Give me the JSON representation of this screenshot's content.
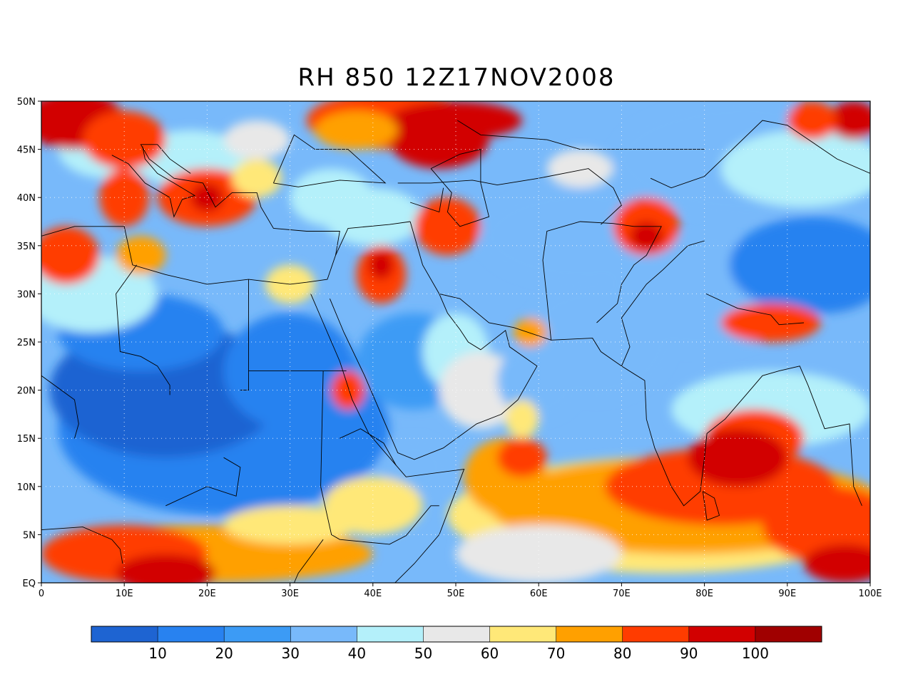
{
  "title": "RH 850 12Z17NOV2008",
  "map": {
    "lon_range": [
      0,
      100
    ],
    "lat_range": [
      0,
      50
    ],
    "x_ticks": [
      "0",
      "10E",
      "20E",
      "30E",
      "40E",
      "50E",
      "60E",
      "70E",
      "80E",
      "90E",
      "100E"
    ],
    "y_ticks": [
      "EQ",
      "5N",
      "10N",
      "15N",
      "20N",
      "25N",
      "30N",
      "35N",
      "40N",
      "45N",
      "50N"
    ],
    "grid": "dotted"
  },
  "colorbar": {
    "colors": [
      "#1e64d2",
      "#2882f0",
      "#3c9bf5",
      "#78b9fa",
      "#b4f0fa",
      "#e8e8e8",
      "#ffe878",
      "#ffa000",
      "#ff3c00",
      "#d20000",
      "#a00000"
    ],
    "labels": [
      "10",
      "20",
      "30",
      "40",
      "50",
      "60",
      "70",
      "80",
      "90",
      "100"
    ]
  }
}
